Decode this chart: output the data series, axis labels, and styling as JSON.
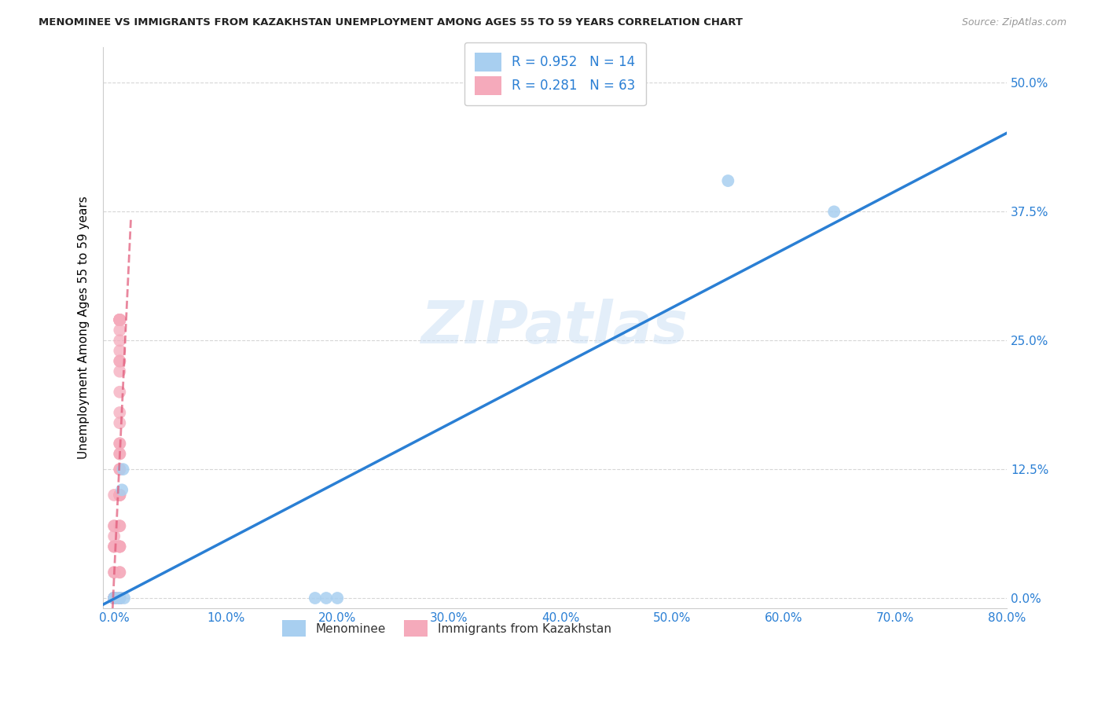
{
  "title": "MENOMINEE VS IMMIGRANTS FROM KAZAKHSTAN UNEMPLOYMENT AMONG AGES 55 TO 59 YEARS CORRELATION CHART",
  "source": "Source: ZipAtlas.com",
  "ylabel": "Unemployment Among Ages 55 to 59 years",
  "legend_label_1": "Menominee",
  "legend_label_2": "Immigrants from Kazakhstan",
  "R1": 0.952,
  "N1": 14,
  "R2": 0.281,
  "N2": 63,
  "color1": "#a8cff0",
  "color2": "#f5aabb",
  "trendline_color1": "#2a7fd4",
  "trendline_color2": "#e05575",
  "watermark": "ZIPatlas",
  "xlim_min": -0.01,
  "xlim_max": 0.8,
  "ylim_min": -0.01,
  "ylim_max": 0.535,
  "xticks": [
    0.0,
    0.1,
    0.2,
    0.3,
    0.4,
    0.5,
    0.6,
    0.7,
    0.8
  ],
  "yticks": [
    0.0,
    0.125,
    0.25,
    0.375,
    0.5
  ],
  "menominee_x": [
    0.0,
    0.0,
    0.0,
    0.005,
    0.005,
    0.005,
    0.007,
    0.008,
    0.009,
    0.18,
    0.19,
    0.2,
    0.55,
    0.645
  ],
  "menominee_y": [
    0.0,
    0.0,
    0.0,
    0.0,
    0.0,
    0.0,
    0.105,
    0.125,
    0.0,
    0.0,
    0.0,
    0.0,
    0.405,
    0.375
  ],
  "kazakhstan_x": [
    0.0,
    0.0,
    0.0,
    0.0,
    0.0,
    0.0,
    0.0,
    0.0,
    0.0,
    0.0,
    0.0,
    0.0,
    0.0,
    0.0,
    0.0,
    0.0,
    0.0,
    0.0,
    0.0,
    0.0,
    0.0,
    0.0,
    0.0,
    0.005,
    0.005,
    0.005,
    0.005,
    0.005,
    0.005,
    0.005,
    0.005,
    0.005,
    0.005,
    0.005,
    0.005,
    0.005,
    0.005,
    0.005,
    0.005,
    0.005,
    0.005,
    0.005,
    0.005,
    0.005,
    0.005,
    0.005,
    0.005,
    0.005,
    0.005,
    0.005,
    0.005,
    0.005,
    0.005,
    0.005,
    0.005,
    0.005,
    0.005,
    0.005,
    0.005,
    0.005,
    0.005,
    0.005,
    0.005
  ],
  "kazakhstan_y": [
    0.0,
    0.0,
    0.0,
    0.0,
    0.0,
    0.0,
    0.0,
    0.0,
    0.0,
    0.0,
    0.0,
    0.0,
    0.0,
    0.0,
    0.025,
    0.025,
    0.05,
    0.05,
    0.05,
    0.06,
    0.07,
    0.07,
    0.1,
    0.0,
    0.0,
    0.0,
    0.0,
    0.0,
    0.0,
    0.025,
    0.025,
    0.05,
    0.05,
    0.05,
    0.05,
    0.07,
    0.07,
    0.1,
    0.1,
    0.1,
    0.1,
    0.125,
    0.125,
    0.14,
    0.14,
    0.15,
    0.15,
    0.17,
    0.18,
    0.2,
    0.22,
    0.23,
    0.23,
    0.24,
    0.25,
    0.26,
    0.27,
    0.27,
    0.27,
    0.27,
    0.27,
    0.27,
    0.27
  ]
}
